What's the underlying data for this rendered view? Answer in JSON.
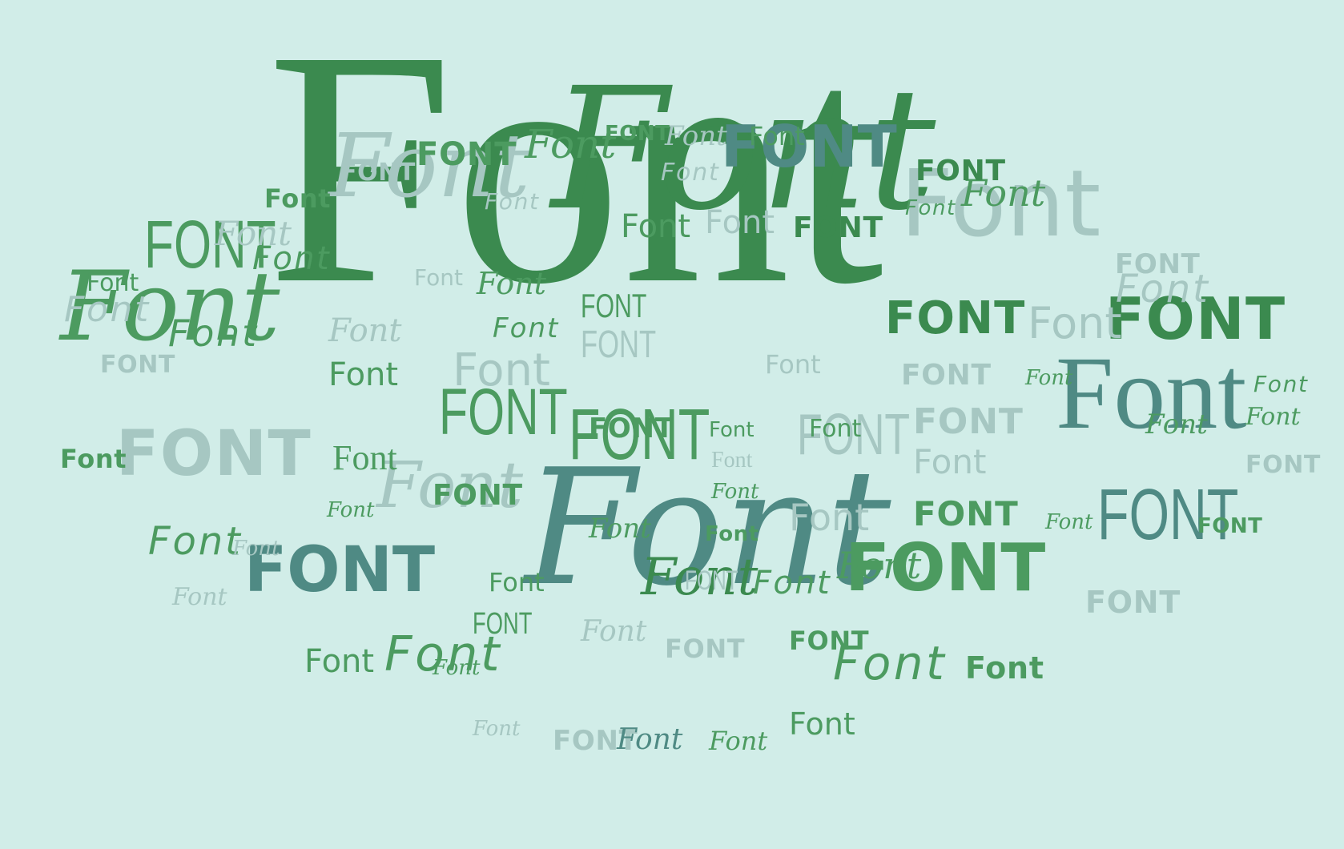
{
  "word_cloud": {
    "word": "Font",
    "word_upper": "FONT",
    "colors": {
      "background": "#d1ede8",
      "dark_green": "#3b8a4f",
      "mid_green": "#4c9b60",
      "teal": "#4f8a84",
      "pale": "#a6c7c2"
    }
  }
}
